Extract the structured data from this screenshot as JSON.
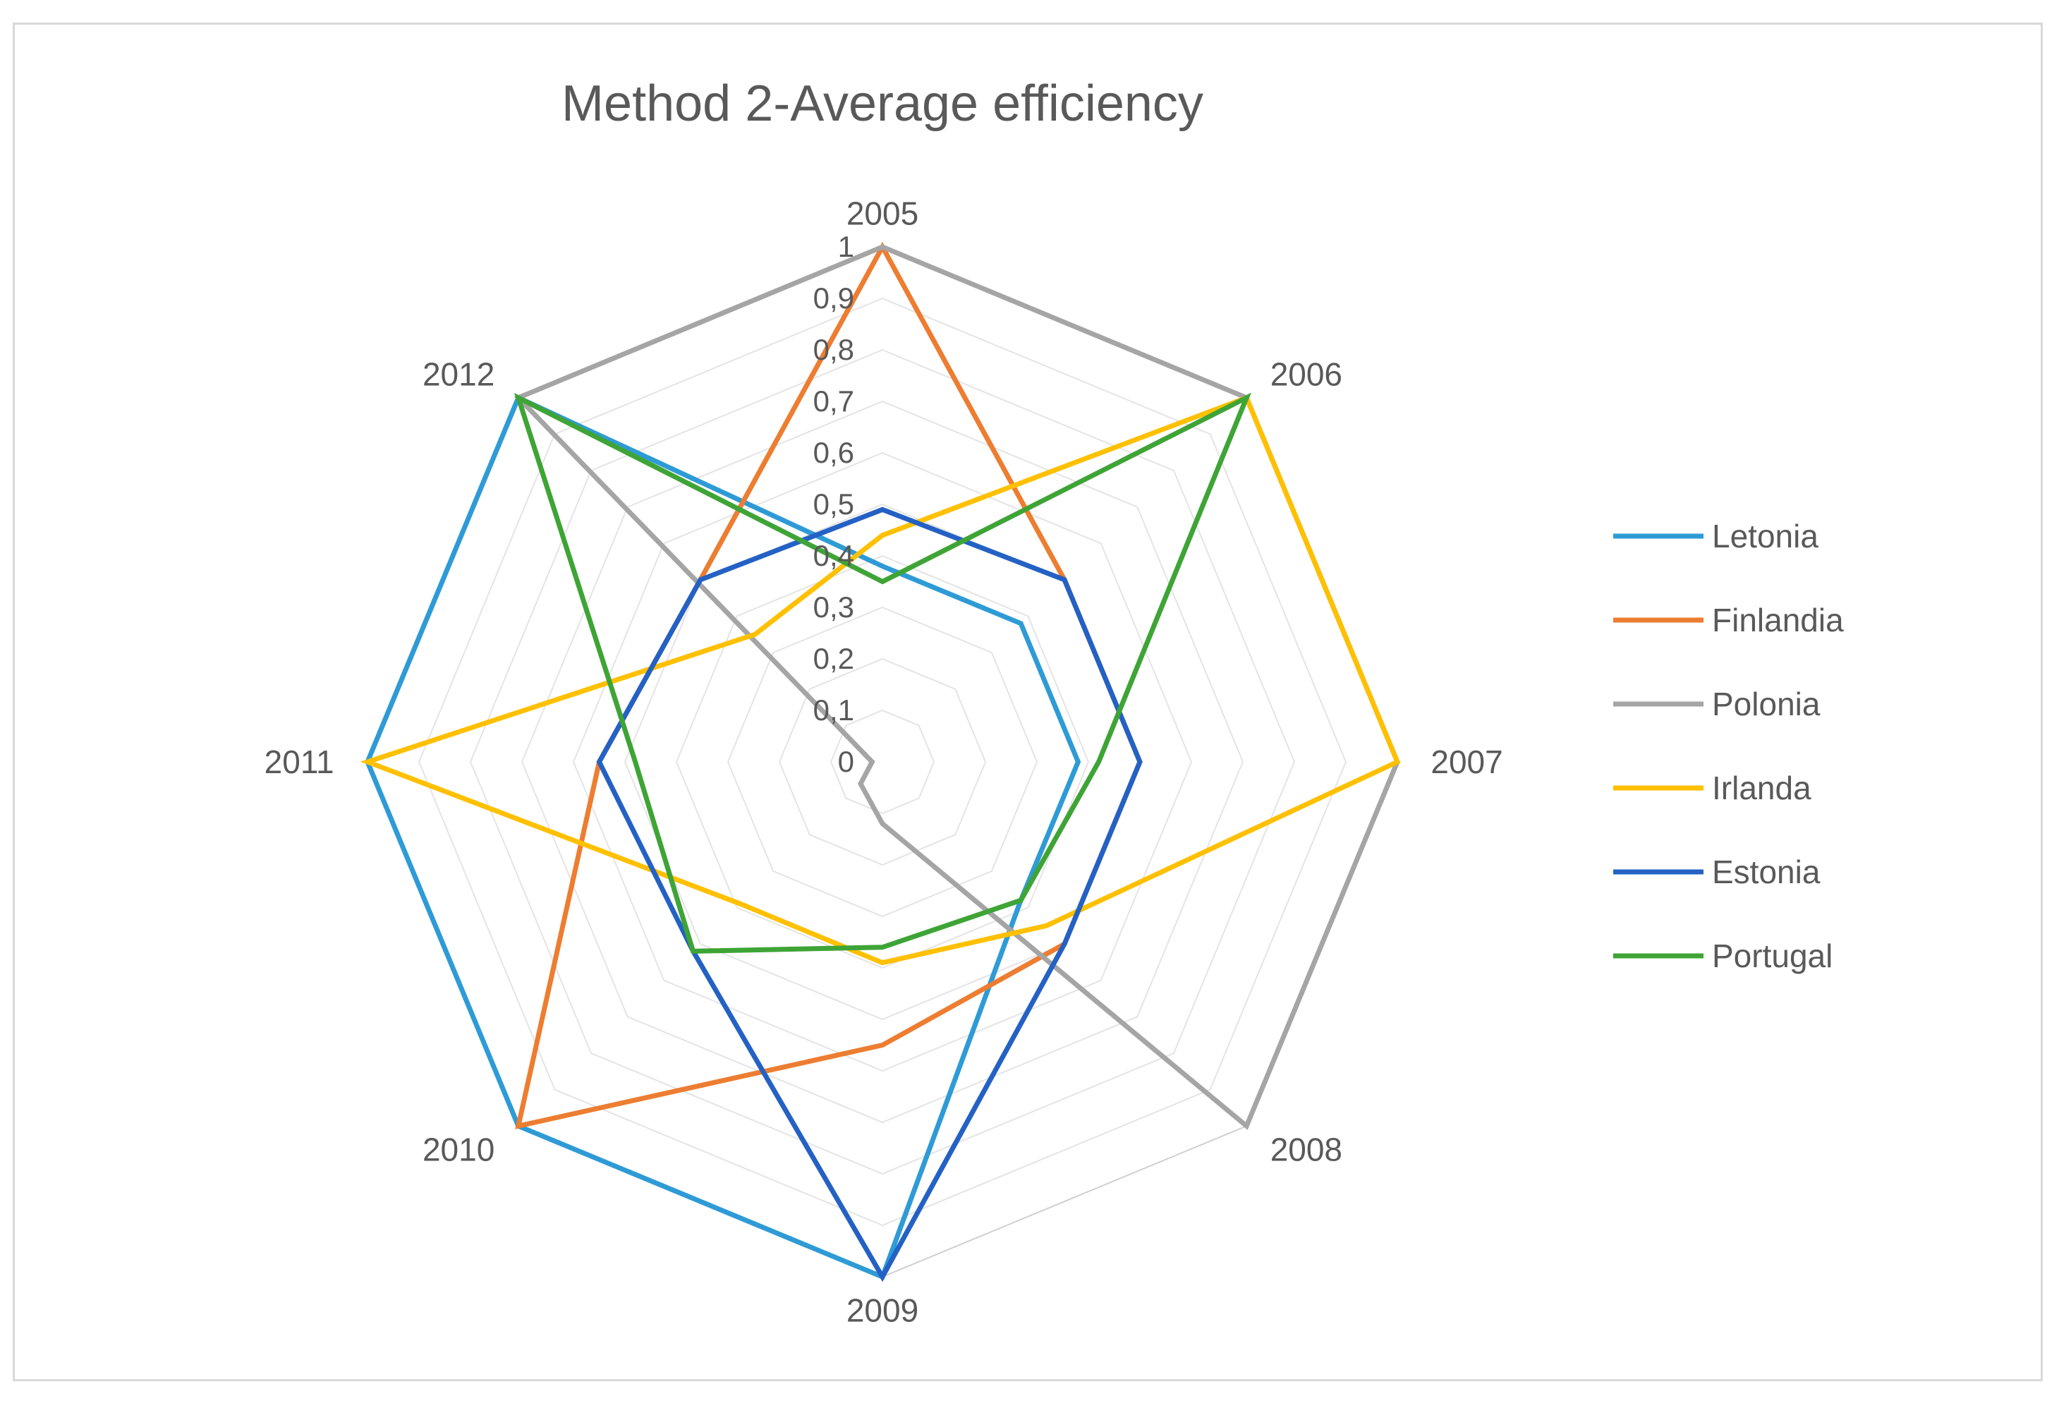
{
  "chart_data": {
    "type": "radar",
    "title": "Method 2-Average efficiency",
    "categories": [
      "2005",
      "2006",
      "2007",
      "2008",
      "2009",
      "2010",
      "2011",
      "2012"
    ],
    "tick_labels": [
      "0",
      "0,1",
      "0,2",
      "0,3",
      "0,4",
      "0,5",
      "0,6",
      "0,7",
      "0,8",
      "0,9",
      "1"
    ],
    "rlim": [
      0,
      1
    ],
    "legend_position": "right",
    "gridlines": true,
    "series": [
      {
        "name": "Letonia",
        "color": "#2e9bd6",
        "values": [
          0.38,
          0.38,
          0.38,
          0.38,
          1.0,
          1.0,
          1.0,
          1.0
        ]
      },
      {
        "name": "Finlandia",
        "color": "#ed7d31",
        "values": [
          1.0,
          0.5,
          0.5,
          0.5,
          0.55,
          1.0,
          0.55,
          0.5
        ]
      },
      {
        "name": "Polonia",
        "color": "#a5a5a5",
        "values": [
          1.0,
          1.0,
          1.0,
          1.0,
          0.12,
          0.06,
          0.02,
          1.0
        ]
      },
      {
        "name": "Irlanda",
        "color": "#ffc000",
        "values": [
          0.44,
          1.0,
          1.0,
          0.45,
          0.39,
          0.39,
          1.0,
          0.35
        ]
      },
      {
        "name": "Estonia",
        "color": "#2461c4",
        "values": [
          0.49,
          0.5,
          0.5,
          0.5,
          1.0,
          0.52,
          0.55,
          0.5
        ]
      },
      {
        "name": "Portugal",
        "color": "#3ea436",
        "values": [
          0.35,
          1.0,
          0.42,
          0.38,
          0.36,
          0.52,
          0.48,
          1.0
        ]
      }
    ]
  }
}
